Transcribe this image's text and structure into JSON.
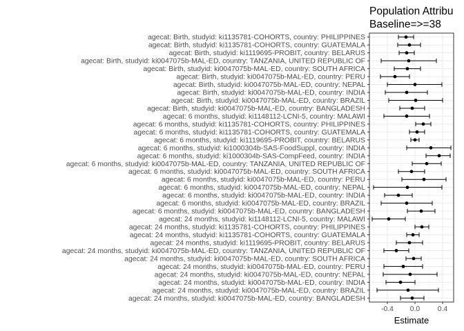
{
  "chart_data": {
    "type": "scatter",
    "title": "Population Attribu",
    "subtitle": "Baseline=>=38",
    "xlabel": "Estimate",
    "ylabel": "",
    "xlim": [
      -0.66,
      0.56
    ],
    "x_ticks": [
      -0.4,
      0,
      0.4
    ],
    "x_tick_labels": [
      "-0.4",
      "0.0",
      "0.4"
    ],
    "grid": true,
    "rows": [
      {
        "label": "agecat: Birth, studyid: ki1135781-COHORTS, country: PHILIPPINES",
        "estimate": -0.13,
        "lower": -0.24,
        "upper": -0.02
      },
      {
        "label": "agecat: Birth, studyid: ki1135781-COHORTS, country: GUATEMALA",
        "estimate": -0.08,
        "lower": -0.25,
        "upper": 0.08
      },
      {
        "label": "agecat: Birth, studyid: ki1119695-PROBIT, country: BELARUS",
        "estimate": -0.12,
        "lower": -0.23,
        "upper": -0.01
      },
      {
        "label": "agecat: Birth, studyid: ki0047075b-MAL-ED, country: TANZANIA, UNITED REPUBLIC OF",
        "estimate": -0.09,
        "lower": -0.49,
        "upper": 0.31
      },
      {
        "label": "agecat: Birth, studyid: ki0047075b-MAL-ED, country: SOUTH AFRICA",
        "estimate": -0.11,
        "lower": -0.3,
        "upper": 0.08
      },
      {
        "label": "agecat: Birth, studyid: ki0047075b-MAL-ED, country: PERU",
        "estimate": -0.29,
        "lower": -0.5,
        "upper": -0.08
      },
      {
        "label": "agecat: Birth, studyid: ki0047075b-MAL-ED, country: NEPAL",
        "estimate": 0.0,
        "lower": -0.4,
        "upper": 0.39
      },
      {
        "label": "agecat: Birth, studyid: ki0047075b-MAL-ED, country: INDIA",
        "estimate": -0.12,
        "lower": -0.43,
        "upper": 0.18
      },
      {
        "label": "agecat: Birth, studyid: ki0047075b-MAL-ED, country: BRAZIL",
        "estimate": 0.01,
        "lower": -0.38,
        "upper": 0.4
      },
      {
        "label": "agecat: Birth, studyid: ki0047075b-MAL-ED, country: BANGLADESH",
        "estimate": -0.04,
        "lower": -0.22,
        "upper": 0.14
      },
      {
        "label": "agecat: 6 months, studyid: ki1148112-LCNI-5, country: MALAWI",
        "estimate": -0.12,
        "lower": -0.45,
        "upper": 0.21
      },
      {
        "label": "agecat: 6 months, studyid: ki1135781-COHORTS, country: PHILIPPINES",
        "estimate": 0.12,
        "lower": 0.01,
        "upper": 0.23
      },
      {
        "label": "agecat: 6 months, studyid: ki1135781-COHORTS, country: GUATEMALA",
        "estimate": 0.03,
        "lower": -0.08,
        "upper": 0.14
      },
      {
        "label": "agecat: 6 months, studyid: ki1119695-PROBIT, country: BELARUS",
        "estimate": 0.0,
        "lower": -0.06,
        "upper": 0.06
      },
      {
        "label": "agecat: 6 months, studyid: ki1000304b-SAS-FoodSuppl, country: INDIA",
        "estimate": 0.23,
        "lower": -0.12,
        "upper": 0.52
      },
      {
        "label": "agecat: 6 months, studyid: ki1000304b-SAS-CompFeed, country: INDIA",
        "estimate": 0.35,
        "lower": 0.16,
        "upper": 0.51
      },
      {
        "label": "agecat: 6 months, studyid: ki0047075b-MAL-ED, country: TANZANIA, UNITED REPUBLIC OF",
        "estimate": 0.17,
        "lower": -0.04,
        "upper": 0.38
      },
      {
        "label": "agecat: 6 months, studyid: ki0047075b-MAL-ED, country: SOUTH AFRICA",
        "estimate": -0.05,
        "lower": -0.24,
        "upper": 0.14
      },
      {
        "label": "agecat: 6 months, studyid: ki0047075b-MAL-ED, country: PERU",
        "estimate": 0.13,
        "lower": -0.19,
        "upper": 0.45
      },
      {
        "label": "agecat: 6 months, studyid: ki0047075b-MAL-ED, country: NEPAL",
        "estimate": -0.11,
        "lower": -0.6,
        "upper": 0.39
      },
      {
        "label": "agecat: 6 months, studyid: ki0047075b-MAL-ED, country: INDIA",
        "estimate": -0.24,
        "lower": -0.44,
        "upper": -0.04
      },
      {
        "label": "agecat: 6 months, studyid: ki0047075b-MAL-ED, country: BRAZIL",
        "estimate": -0.12,
        "lower": -0.49,
        "upper": 0.25
      },
      {
        "label": "agecat: 6 months, studyid: ki0047075b-MAL-ED, country: BANGLADESH",
        "estimate": 0.09,
        "lower": -0.11,
        "upper": 0.29
      },
      {
        "label": "agecat: 24 months, studyid: ki1148112-LCNI-5, country: MALAWI",
        "estimate": -0.38,
        "lower": -0.62,
        "upper": -0.14
      },
      {
        "label": "agecat: 24 months, studyid: ki1135781-COHORTS, country: PHILIPPINES",
        "estimate": 0.1,
        "lower": 0.0,
        "upper": 0.2
      },
      {
        "label": "agecat: 24 months, studyid: ki1135781-COHORTS, country: GUATEMALA",
        "estimate": -0.03,
        "lower": -0.12,
        "upper": 0.06
      },
      {
        "label": "agecat: 24 months, studyid: ki1119695-PROBIT, country: BELARUS",
        "estimate": -0.08,
        "lower": -0.27,
        "upper": 0.11
      },
      {
        "label": "agecat: 24 months, studyid: ki0047075b-MAL-ED, country: TANZANIA, UNITED REPUBLIC OF",
        "estimate": -0.27,
        "lower": -0.45,
        "upper": -0.09
      },
      {
        "label": "agecat: 24 months, studyid: ki0047075b-MAL-ED, country: SOUTH AFRICA",
        "estimate": -0.02,
        "lower": -0.13,
        "upper": 0.09
      },
      {
        "label": "agecat: 24 months, studyid: ki0047075b-MAL-ED, country: PERU",
        "estimate": -0.17,
        "lower": -0.45,
        "upper": 0.11
      },
      {
        "label": "agecat: 24 months, studyid: ki0047075b-MAL-ED, country: NEPAL",
        "estimate": -0.07,
        "lower": -0.46,
        "upper": 0.32
      },
      {
        "label": "agecat: 24 months, studyid: ki0047075b-MAL-ED, country: INDIA",
        "estimate": -0.21,
        "lower": -0.42,
        "upper": 0.0
      },
      {
        "label": "agecat: 24 months, studyid: ki0047075b-MAL-ED, country: BRAZIL",
        "estimate": -0.1,
        "lower": -0.55,
        "upper": 0.34
      },
      {
        "label": "agecat: 24 months, studyid: ki0047075b-MAL-ED, country: BANGLADESH",
        "estimate": -0.04,
        "lower": -0.21,
        "upper": 0.13
      }
    ],
    "colors": {
      "panel_background": "#ffffff",
      "panel_border": "#333333",
      "grid_major": "#ebebeb",
      "grid_minor": "#f4f4f4",
      "point": "#000000",
      "errorbar": "#000000",
      "axis_text": "#4d4d4d",
      "title_text": "#000000"
    }
  }
}
